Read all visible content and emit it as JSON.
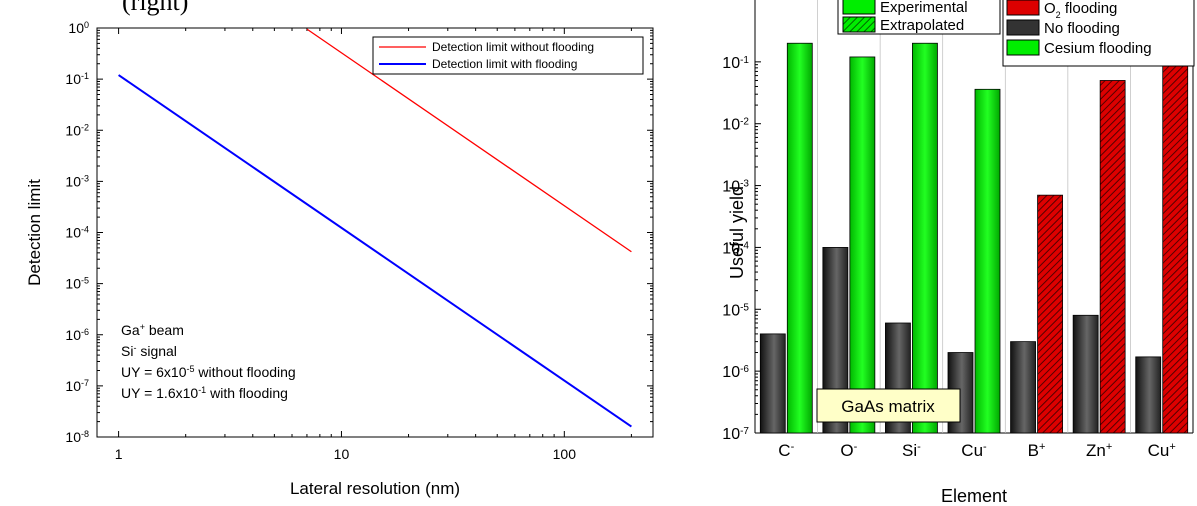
{
  "panel_label": "(right)",
  "chart_data": [
    {
      "type": "line",
      "xscale": "log",
      "yscale": "log",
      "xlabel": "Lateral resolution (nm)",
      "ylabel": "Detection limit",
      "xlim": [
        0.8,
        250
      ],
      "ylim": [
        1e-08,
        1
      ],
      "x_ticks": [
        1,
        10,
        100
      ],
      "x_tick_labels": [
        "1",
        "10",
        "100"
      ],
      "y_ticks": [
        {
          "base": "10",
          "exp": "0",
          "value": 1
        },
        {
          "base": "10",
          "exp": "-1",
          "value": 0.1
        },
        {
          "base": "10",
          "exp": "-2",
          "value": 0.01
        },
        {
          "base": "10",
          "exp": "-3",
          "value": 0.001
        },
        {
          "base": "10",
          "exp": "-4",
          "value": 0.0001
        },
        {
          "base": "10",
          "exp": "-5",
          "value": 1e-05
        },
        {
          "base": "10",
          "exp": "-6",
          "value": 1e-06
        },
        {
          "base": "10",
          "exp": "-7",
          "value": 1e-07
        },
        {
          "base": "10",
          "exp": "-8",
          "value": 1e-08
        }
      ],
      "series": [
        {
          "name": "Detection limit without flooding",
          "color": "#ff0000",
          "x": [
            7,
            200
          ],
          "y": [
            0.95,
            4.2e-05
          ]
        },
        {
          "name": "Detection limit with flooding",
          "color": "#0000ff",
          "x": [
            1,
            200
          ],
          "y": [
            0.12,
            1.6e-08
          ]
        }
      ],
      "legend_position": "top-right",
      "annotations": [
        {
          "parts": [
            [
              "Ga",
              ""
            ],
            [
              "+",
              "sup"
            ],
            [
              " beam",
              ""
            ]
          ]
        },
        {
          "parts": [
            [
              "Si",
              ""
            ],
            [
              "-",
              "sup"
            ],
            [
              " signal",
              ""
            ]
          ]
        },
        {
          "parts": [
            [
              "UY = 6x10",
              ""
            ],
            [
              "-5",
              "sup"
            ],
            [
              " without flooding",
              ""
            ]
          ]
        },
        {
          "parts": [
            [
              "UY = 1.6x10",
              ""
            ],
            [
              "-1",
              "sup"
            ],
            [
              " with flooding",
              ""
            ]
          ]
        }
      ]
    },
    {
      "type": "bar",
      "yscale": "log",
      "xlabel": "Element",
      "ylabel": "Useful yield",
      "ylim": [
        1e-07,
        1
      ],
      "y_ticks": [
        {
          "base": "10",
          "exp": "-1",
          "value": 0.1
        },
        {
          "base": "10",
          "exp": "-2",
          "value": 0.01
        },
        {
          "base": "10",
          "exp": "-3",
          "value": 0.001
        },
        {
          "base": "10",
          "exp": "-4",
          "value": 0.0001
        },
        {
          "base": "10",
          "exp": "-5",
          "value": 1e-05
        },
        {
          "base": "10",
          "exp": "-6",
          "value": 1e-06
        },
        {
          "base": "10",
          "exp": "-7",
          "value": 1e-07
        }
      ],
      "categories": [
        {
          "base": "C",
          "sup": "-"
        },
        {
          "base": "O",
          "sup": "-"
        },
        {
          "base": "Si",
          "sup": "-"
        },
        {
          "base": "Cu",
          "sup": "-"
        },
        {
          "base": "B",
          "sup": "+"
        },
        {
          "base": "Zn",
          "sup": "+"
        },
        {
          "base": "Cu",
          "sup": "+"
        }
      ],
      "series": [
        {
          "name": "No flooding",
          "color": "#333333",
          "values": [
            4e-06,
            0.0001,
            6e-06,
            2e-06,
            3e-06,
            8e-06,
            1.7e-06
          ]
        },
        {
          "name": "Flooding",
          "values": [
            0.2,
            0.12,
            0.2,
            0.036,
            0.0007,
            0.05,
            0.1
          ],
          "flood_types": [
            "cesium",
            "cesium",
            "cesium",
            "cesium",
            "oxygen",
            "oxygen",
            "oxygen"
          ],
          "fill_types": [
            "experimental",
            "experimental",
            "experimental",
            "extrapolated",
            "extrapolated",
            "extrapolated",
            "extrapolated"
          ]
        }
      ],
      "colors": {
        "cesium": "#00ee00",
        "oxygen": "#dd0000",
        "none": "#333333"
      },
      "legend_fill": [
        {
          "label": "Experimental",
          "style": "solid"
        },
        {
          "label": "Extrapolated",
          "style": "hatched"
        }
      ],
      "legend_flood": [
        {
          "parts": [
            [
              "O",
              ""
            ],
            [
              "2",
              "sub"
            ],
            [
              " flooding",
              ""
            ]
          ],
          "key": "oxygen"
        },
        {
          "parts": [
            [
              "No flooding",
              ""
            ]
          ],
          "key": "none"
        },
        {
          "parts": [
            [
              "Cesium flooding",
              ""
            ]
          ],
          "key": "cesium"
        }
      ],
      "matrix_label": "GaAs matrix"
    }
  ]
}
